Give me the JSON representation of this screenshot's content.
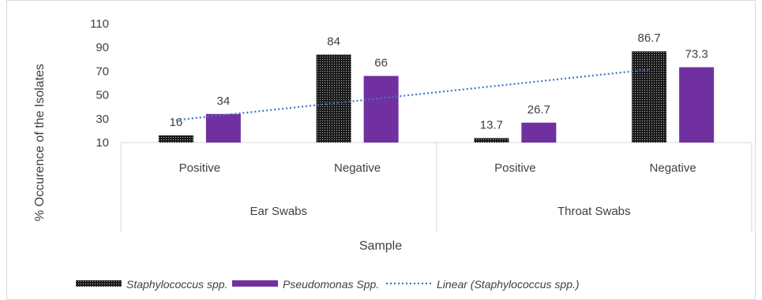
{
  "chart_data": {
    "type": "bar",
    "title": "",
    "xlabel": "Sample",
    "ylabel": "% Occurence of the Isolates",
    "ylim": [
      10,
      110
    ],
    "yticks": [
      10,
      30,
      50,
      70,
      90,
      110
    ],
    "groups": [
      {
        "label": "Ear Swabs",
        "categories": [
          "Positive",
          "Negative"
        ]
      },
      {
        "label": "Throat Swabs",
        "categories": [
          "Positive",
          "Negative"
        ]
      }
    ],
    "categories": [
      "Positive",
      "Negative",
      "Positive",
      "Negative"
    ],
    "series": [
      {
        "name": "Staphylococcus spp.",
        "values": [
          16,
          84,
          13.7,
          86.7
        ],
        "color": "#1a1a1a",
        "pattern": "dotted"
      },
      {
        "name": "Pseudomonas Spp.",
        "values": [
          34,
          66,
          26.7,
          73.3
        ],
        "color": "#7030a0"
      }
    ],
    "trendline": {
      "name": "Linear (Staphylococcus spp.)",
      "of_series": "Staphylococcus spp.",
      "color": "#4472c4",
      "style": "dotted"
    },
    "data_labels": [
      "16",
      "84",
      "13.7",
      "86.7",
      "34",
      "66",
      "26.7",
      "73.3"
    ],
    "grid": false,
    "legend": "bottom"
  }
}
